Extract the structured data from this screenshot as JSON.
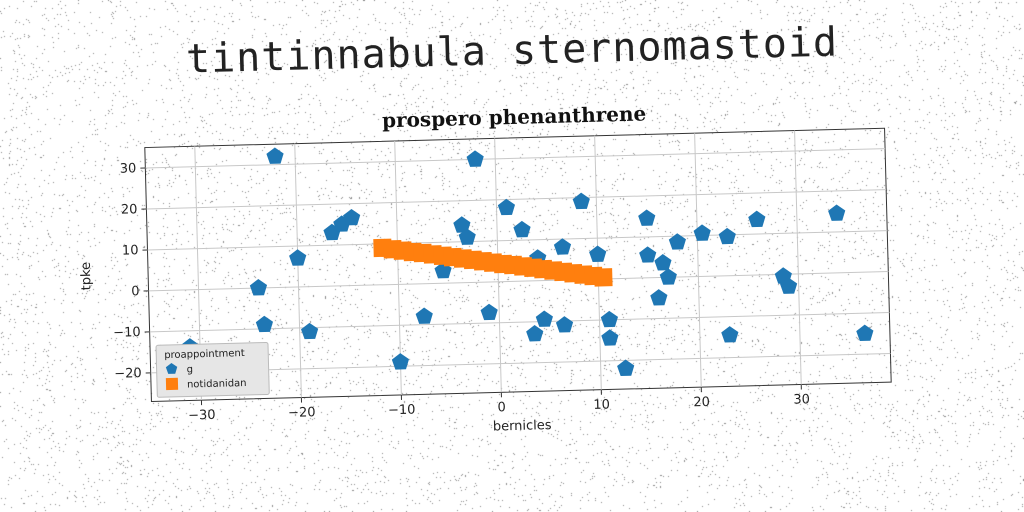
{
  "header": {
    "title": "tintinnabula sternomastoid"
  },
  "chart_data": {
    "type": "scatter",
    "title": "prospero phenanthrene",
    "xlabel": "bernicles",
    "ylabel": "tpke",
    "xlim": [
      -35,
      39
    ],
    "ylim": [
      -27,
      35
    ],
    "xticks": [
      -30,
      -20,
      -10,
      0,
      10,
      20,
      30
    ],
    "yticks": [
      -20,
      -10,
      0,
      10,
      20,
      30
    ],
    "grid": true,
    "legend": {
      "title": "proappointment",
      "placement": "lower-left"
    },
    "series": [
      {
        "name": "g",
        "marker": "pentagon",
        "color": "#1f77b4",
        "x": [
          -22,
          -31,
          -24,
          -23.5,
          -20,
          -19,
          -16.5,
          -15.5,
          -14.5,
          -10,
          -7.5,
          -5.5,
          -3.5,
          -3,
          -2,
          -1,
          1,
          2.5,
          3.5,
          4,
          4.5,
          6.5,
          6.5,
          8.5,
          10,
          11,
          11,
          12.5,
          15,
          15,
          16,
          16.5,
          17,
          18,
          20.5,
          23,
          23,
          26,
          28.5,
          29,
          34,
          36.5
        ],
        "y": [
          32,
          -14,
          0,
          -9,
          7,
          -11,
          13,
          15,
          16.5,
          -19,
          -8,
          3,
          14,
          11,
          30,
          -7.5,
          18,
          12.5,
          -13,
          5.5,
          -9.5,
          -11,
          8,
          19,
          6,
          -14.5,
          -10,
          -22,
          14.5,
          5.5,
          -5,
          3.5,
          0,
          8.5,
          10.5,
          -14.5,
          9.5,
          13.5,
          -0.5,
          -3,
          14.5,
          -15
        ]
      },
      {
        "name": "notidanidan",
        "marker": "square",
        "color": "#ff7f0e",
        "x": [
          -11.5,
          -10.5,
          -9.5,
          -8.5,
          -7.5,
          -6.5,
          -5.5,
          -4.5,
          -3.5,
          -2.5,
          -1.5,
          -0.5,
          0.5,
          1.5,
          2.5,
          3.5,
          4.5,
          5.5,
          6.5,
          7.5,
          8.5,
          9.5,
          10.5
        ],
        "y": [
          9.0,
          8.6,
          8.2,
          7.8,
          7.5,
          7.1,
          6.7,
          6.3,
          5.9,
          5.5,
          5.1,
          4.7,
          4.3,
          4.0,
          3.6,
          3.2,
          2.8,
          2.4,
          2.0,
          1.6,
          1.2,
          0.8,
          0.4
        ]
      }
    ]
  }
}
